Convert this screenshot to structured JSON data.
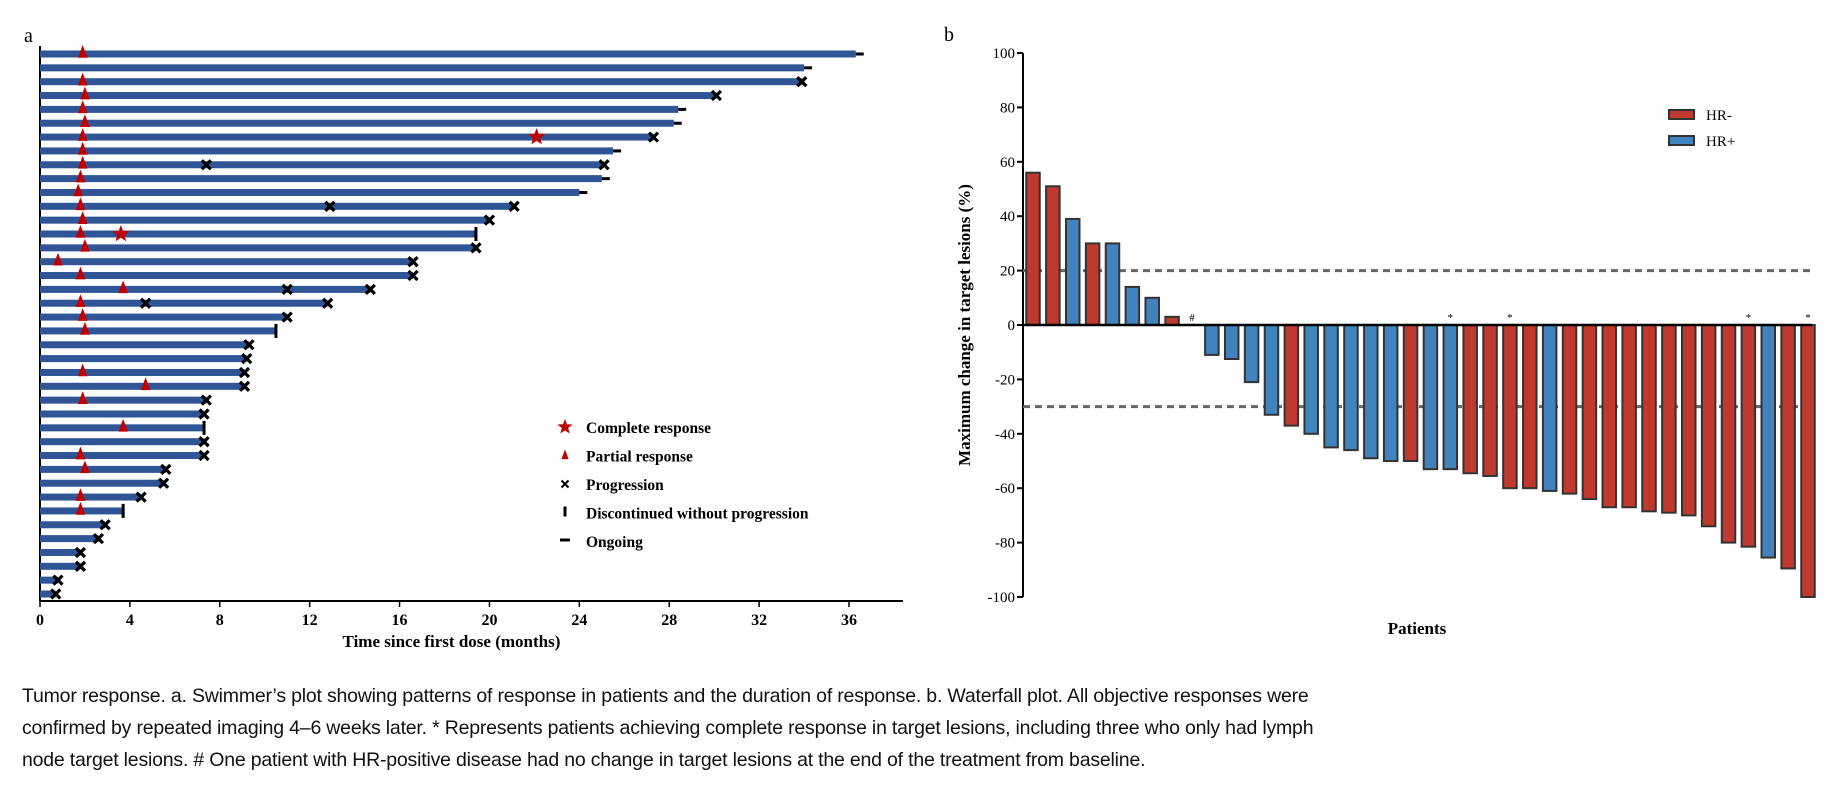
{
  "panel_labels": {
    "a": "a",
    "b": "b"
  },
  "colors": {
    "swim_bar": "#2f5597",
    "response": "#c00000",
    "marker": "#000000",
    "hr_neg": "#c0392f",
    "hr_pos": "#4183bd",
    "dashed": "#666666",
    "bar_outline": "#333333"
  },
  "chart_data": [
    {
      "type": "bar",
      "orientation": "horizontal",
      "subtype": "swimmer",
      "xlabel": "Time since first dose (months)",
      "xlim": [
        0,
        38.4
      ],
      "xticks": [
        "0",
        "4",
        "8",
        "12",
        "16",
        "20",
        "24",
        "28",
        "32",
        "36"
      ],
      "legend": {
        "placement": "bottom-right",
        "entries": [
          {
            "symbol": "star",
            "label": "Complete response"
          },
          {
            "symbol": "triangle",
            "label": "Partial response"
          },
          {
            "symbol": "cross",
            "label": "Progression"
          },
          {
            "symbol": "vbar",
            "label": "Discontinued without progression"
          },
          {
            "symbol": "hbar",
            "label": "Ongoing"
          }
        ]
      },
      "rows": [
        {
          "duration": 36.3,
          "end": "ongoing",
          "partial": [
            1.9
          ],
          "complete": [],
          "progression": []
        },
        {
          "duration": 34.0,
          "end": "ongoing",
          "partial": [],
          "complete": [],
          "progression": []
        },
        {
          "duration": 33.9,
          "end": "progression",
          "partial": [
            1.9
          ],
          "complete": [],
          "progression": []
        },
        {
          "duration": 30.1,
          "end": "progression",
          "partial": [
            2.0
          ],
          "complete": [],
          "progression": []
        },
        {
          "duration": 28.4,
          "end": "ongoing",
          "partial": [
            1.9
          ],
          "complete": [],
          "progression": []
        },
        {
          "duration": 28.2,
          "end": "ongoing",
          "partial": [
            2.0
          ],
          "complete": [],
          "progression": []
        },
        {
          "duration": 27.3,
          "end": "progression",
          "partial": [
            1.9
          ],
          "complete": [
            22.1
          ],
          "progression": []
        },
        {
          "duration": 25.5,
          "end": "ongoing",
          "partial": [
            1.9
          ],
          "complete": [],
          "progression": []
        },
        {
          "duration": 25.1,
          "end": "progression",
          "partial": [
            1.9
          ],
          "complete": [],
          "progression": [
            7.4
          ]
        },
        {
          "duration": 25.0,
          "end": "ongoing",
          "partial": [
            1.8
          ],
          "complete": [],
          "progression": []
        },
        {
          "duration": 24.0,
          "end": "ongoing",
          "partial": [
            1.7
          ],
          "complete": [],
          "progression": []
        },
        {
          "duration": 21.1,
          "end": "progression",
          "partial": [
            1.8
          ],
          "complete": [],
          "progression": [
            12.9
          ]
        },
        {
          "duration": 20.0,
          "end": "progression",
          "partial": [
            1.9
          ],
          "complete": [],
          "progression": []
        },
        {
          "duration": 19.4,
          "end": "discontinued",
          "partial": [
            1.8
          ],
          "complete": [
            3.6
          ],
          "progression": []
        },
        {
          "duration": 19.4,
          "end": "progression",
          "partial": [
            2.0
          ],
          "complete": [],
          "progression": []
        },
        {
          "duration": 16.6,
          "end": "progression",
          "partial": [
            0.8
          ],
          "complete": [],
          "progression": []
        },
        {
          "duration": 16.6,
          "end": "progression",
          "partial": [
            1.8
          ],
          "complete": [],
          "progression": []
        },
        {
          "duration": 14.7,
          "end": "progression",
          "partial": [
            3.7
          ],
          "complete": [],
          "progression": [
            11.0
          ]
        },
        {
          "duration": 12.8,
          "end": "progression",
          "partial": [
            1.8
          ],
          "complete": [],
          "progression": [
            4.7
          ]
        },
        {
          "duration": 11.0,
          "end": "progression",
          "partial": [
            1.9
          ],
          "complete": [],
          "progression": []
        },
        {
          "duration": 10.5,
          "end": "discontinued",
          "partial": [
            2.0
          ],
          "complete": [],
          "progression": []
        },
        {
          "duration": 9.3,
          "end": "progression",
          "partial": [],
          "complete": [],
          "progression": []
        },
        {
          "duration": 9.2,
          "end": "progression",
          "partial": [],
          "complete": [],
          "progression": []
        },
        {
          "duration": 9.1,
          "end": "progression",
          "partial": [
            1.9
          ],
          "complete": [],
          "progression": []
        },
        {
          "duration": 9.1,
          "end": "progression",
          "partial": [
            4.7
          ],
          "complete": [],
          "progression": []
        },
        {
          "duration": 7.4,
          "end": "progression",
          "partial": [
            1.9
          ],
          "complete": [],
          "progression": []
        },
        {
          "duration": 7.3,
          "end": "progression",
          "partial": [],
          "complete": [],
          "progression": []
        },
        {
          "duration": 7.3,
          "end": "discontinued",
          "partial": [
            3.7
          ],
          "complete": [],
          "progression": []
        },
        {
          "duration": 7.3,
          "end": "progression",
          "partial": [],
          "complete": [],
          "progression": []
        },
        {
          "duration": 7.3,
          "end": "progression",
          "partial": [
            1.8
          ],
          "complete": [],
          "progression": []
        },
        {
          "duration": 5.6,
          "end": "progression",
          "partial": [
            2.0
          ],
          "complete": [],
          "progression": []
        },
        {
          "duration": 5.5,
          "end": "progression",
          "partial": [],
          "complete": [],
          "progression": []
        },
        {
          "duration": 4.5,
          "end": "progression",
          "partial": [
            1.8
          ],
          "complete": [],
          "progression": []
        },
        {
          "duration": 3.7,
          "end": "discontinued",
          "partial": [
            1.8
          ],
          "complete": [],
          "progression": []
        },
        {
          "duration": 2.9,
          "end": "progression",
          "partial": [],
          "complete": [],
          "progression": []
        },
        {
          "duration": 2.6,
          "end": "progression",
          "partial": [],
          "complete": [],
          "progression": []
        },
        {
          "duration": 1.8,
          "end": "progression",
          "partial": [],
          "complete": [],
          "progression": []
        },
        {
          "duration": 1.8,
          "end": "progression",
          "partial": [],
          "complete": [],
          "progression": []
        },
        {
          "duration": 0.8,
          "end": "progression",
          "partial": [],
          "complete": [],
          "progression": []
        },
        {
          "duration": 0.7,
          "end": "progression",
          "partial": [],
          "complete": [],
          "progression": []
        }
      ]
    },
    {
      "type": "bar",
      "subtype": "waterfall",
      "xlabel": "Patients",
      "ylabel": "Maximum change in target lesions (%)",
      "ylim": [
        -100,
        100
      ],
      "yticks": [
        "100",
        "80",
        "60",
        "40",
        "20",
        "0",
        "-20",
        "-40",
        "-60",
        "-80",
        "-100"
      ],
      "reference_lines": [
        20,
        -30
      ],
      "legend": {
        "placement": "top-right",
        "entries": [
          {
            "group": "HR-",
            "label": "HR-"
          },
          {
            "group": "HR+",
            "label": "HR+"
          }
        ]
      },
      "values": [
        56,
        51,
        39,
        30,
        30,
        14,
        10,
        3,
        0,
        -11,
        -12.5,
        -21,
        -33,
        -37,
        -40,
        -45,
        -46,
        -49,
        -50,
        -50,
        -53,
        -53,
        -54.5,
        -55.5,
        -60,
        -60,
        -61,
        -62,
        -64,
        -67,
        -67,
        -68.5,
        -69,
        -70,
        -74,
        -80,
        -81.5,
        -85.5,
        -89.5,
        -100
      ],
      "groups": [
        "HR-",
        "HR-",
        "HR+",
        "HR-",
        "HR+",
        "HR+",
        "HR+",
        "HR-",
        "HR+",
        "HR+",
        "HR+",
        "HR+",
        "HR+",
        "HR-",
        "HR+",
        "HR+",
        "HR+",
        "HR+",
        "HR+",
        "HR-",
        "HR+",
        "HR+",
        "HR-",
        "HR-",
        "HR-",
        "HR-",
        "HR+",
        "HR-",
        "HR-",
        "HR-",
        "HR-",
        "HR-",
        "HR-",
        "HR-",
        "HR-",
        "HR-",
        "HR-",
        "HR+",
        "HR-",
        "HR-"
      ],
      "annotations": [
        "",
        "",
        "",
        "",
        "",
        "",
        "",
        "",
        "#",
        "",
        "",
        "",
        "",
        "",
        "",
        "",
        "",
        "",
        "",
        "",
        "",
        "*",
        "",
        "",
        "*",
        "",
        "",
        "",
        "",
        "",
        "",
        "",
        "",
        "",
        "",
        "",
        "*",
        "",
        "",
        "*"
      ]
    }
  ],
  "caption": {
    "lines": [
      "Tumor response. a. Swimmer’s plot showing patterns of response in patients and the duration of response. b. Waterfall plot. All objective responses were",
      "confirmed by repeated imaging 4–6 weeks later. * Represents patients achieving complete response in target lesions, including three who only had lymph",
      "node target lesions. # One patient with HR-positive disease had no change in target lesions at the end of the treatment from baseline."
    ]
  }
}
